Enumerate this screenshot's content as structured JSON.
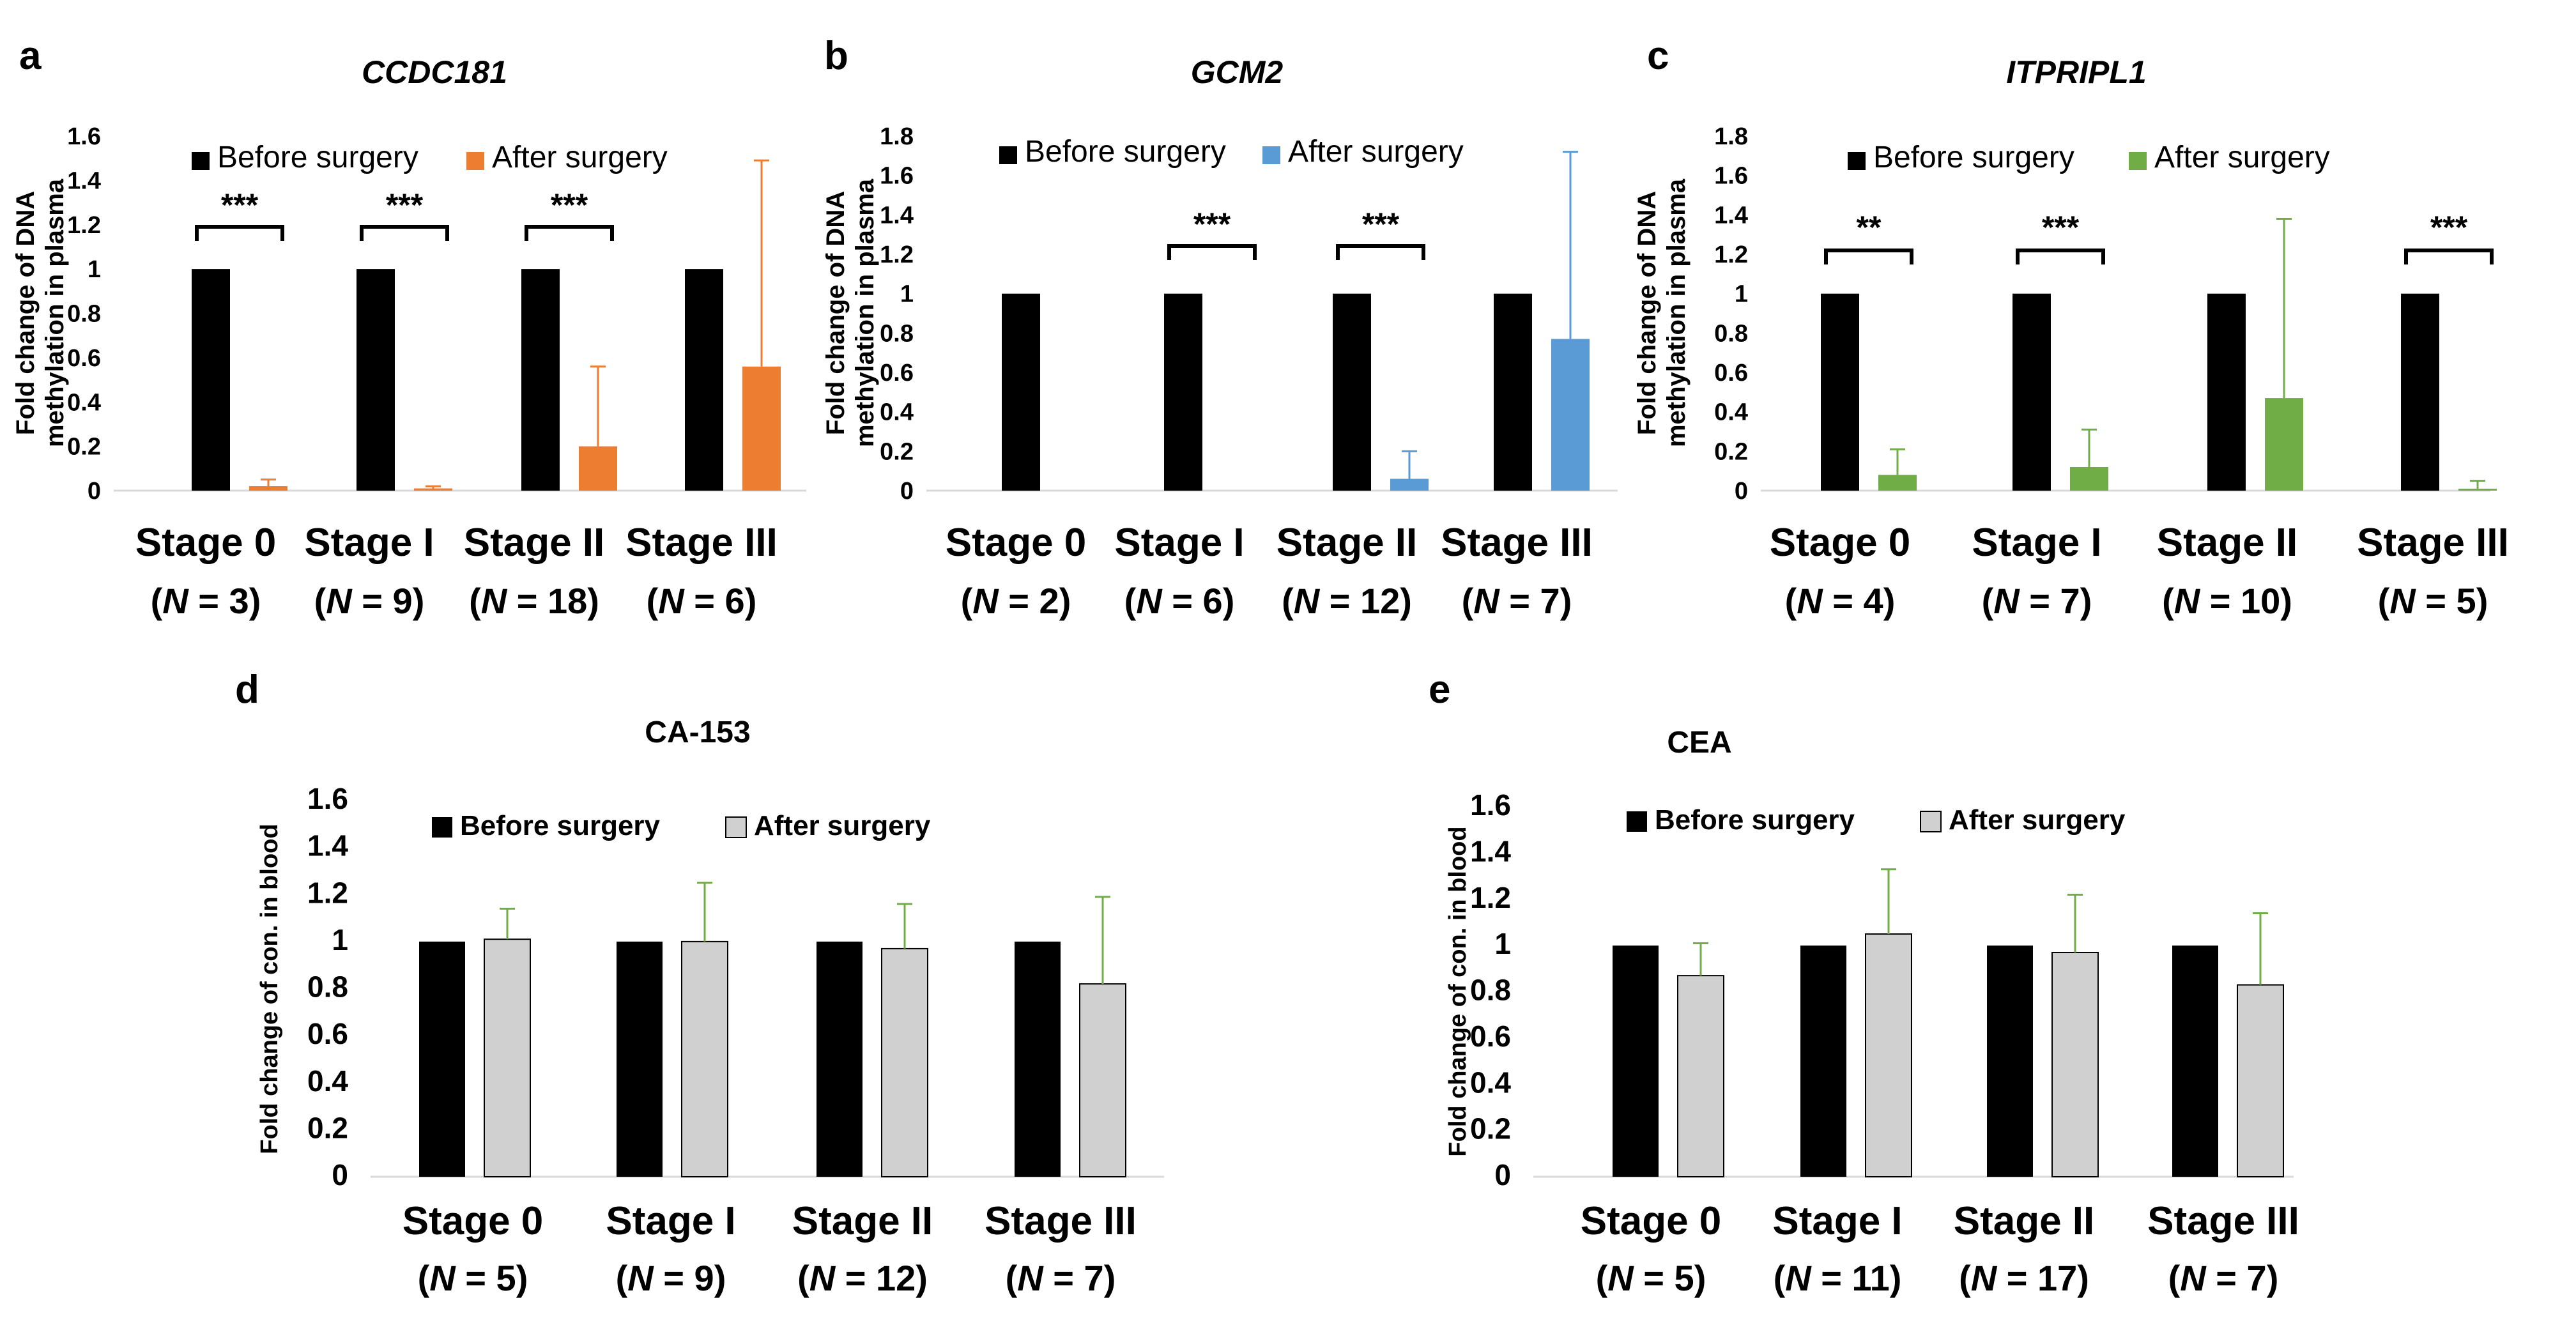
{
  "chart_data": [
    {
      "panel": "a",
      "type": "bar",
      "title": "CCDC181",
      "ylabel_lines": [
        "Fold change of DNA",
        "methylation in plasma"
      ],
      "ylim": [
        0,
        1.6
      ],
      "yticks": [
        "0",
        "0.2",
        "0.4",
        "0.6",
        "0.8",
        "1",
        "1.2",
        "1.4",
        "1.6"
      ],
      "categories": [
        "Stage 0",
        "Stage I",
        "Stage II",
        "Stage III"
      ],
      "n_values": [
        "3",
        "9",
        "18",
        "6"
      ],
      "series": [
        {
          "name": "Before surgery",
          "color": "#000000",
          "values": [
            1,
            1,
            1,
            1
          ],
          "errors": [
            0,
            0,
            0,
            0
          ]
        },
        {
          "name": "After surgery",
          "color": "#ED7D31",
          "values": [
            0.02,
            0.01,
            0.2,
            0.56
          ],
          "errors": [
            0.03,
            0.01,
            0.36,
            0.93
          ]
        }
      ],
      "significance": [
        "***",
        "***",
        "***",
        ""
      ]
    },
    {
      "panel": "b",
      "type": "bar",
      "title": "GCM2",
      "ylabel_lines": [
        "Fold change of DNA",
        "methylation in plasma"
      ],
      "ylim": [
        0,
        1.8
      ],
      "yticks": [
        "0",
        "0.2",
        "0.4",
        "0.6",
        "0.8",
        "1",
        "1.2",
        "1.4",
        "1.6",
        "1.8"
      ],
      "categories": [
        "Stage 0",
        "Stage I",
        "Stage II",
        "Stage III"
      ],
      "n_values": [
        "2",
        "6",
        "12",
        "7"
      ],
      "series": [
        {
          "name": "Before surgery",
          "color": "#000000",
          "values": [
            1,
            1,
            1,
            1
          ],
          "errors": [
            0,
            0,
            0,
            0
          ]
        },
        {
          "name": "After surgery",
          "color": "#5B9BD5",
          "values": [
            0,
            0,
            0.06,
            0.77
          ],
          "errors": [
            0,
            0,
            0.14,
            0.95
          ]
        }
      ],
      "significance": [
        "",
        "***",
        "***",
        ""
      ]
    },
    {
      "panel": "c",
      "type": "bar",
      "title": "ITPRIPL1",
      "ylabel_lines": [
        "Fold change of DNA",
        "methylation in plasma"
      ],
      "ylim": [
        0,
        1.8
      ],
      "yticks": [
        "0",
        "0.2",
        "0.4",
        "0.6",
        "0.8",
        "1",
        "1.2",
        "1.4",
        "1.6",
        "1.8"
      ],
      "categories": [
        "Stage 0",
        "Stage I",
        "Stage II",
        "Stage III"
      ],
      "n_values": [
        "4",
        "7",
        "10",
        "5"
      ],
      "series": [
        {
          "name": "Before surgery",
          "color": "#000000",
          "values": [
            1,
            1,
            1,
            1
          ],
          "errors": [
            0,
            0,
            0,
            0
          ]
        },
        {
          "name": "After surgery",
          "color": "#70AD47",
          "values": [
            0.08,
            0.12,
            0.47,
            0.01
          ],
          "errors": [
            0.13,
            0.19,
            0.91,
            0.04
          ]
        }
      ],
      "significance": [
        "**",
        "***",
        "",
        "***"
      ]
    },
    {
      "panel": "d",
      "type": "bar",
      "title": "CA-153",
      "ylabel_lines": [
        "Fold change of con. in blood"
      ],
      "ylim": [
        0,
        1.6
      ],
      "yticks": [
        "0",
        "0.2",
        "0.4",
        "0.6",
        "0.8",
        "1",
        "1.2",
        "1.4",
        "1.6"
      ],
      "categories": [
        "Stage 0",
        "Stage I",
        "Stage II",
        "Stage III"
      ],
      "n_values": [
        "5",
        "9",
        "12",
        "7"
      ],
      "series": [
        {
          "name": "Before surgery",
          "color": "#000000",
          "values": [
            1,
            1,
            1,
            1
          ],
          "errors": [
            0,
            0,
            0,
            0
          ]
        },
        {
          "name": "After surgery",
          "color": "#D0D0D0",
          "values": [
            1.01,
            1.0,
            0.97,
            0.82
          ],
          "errors": [
            0.13,
            0.25,
            0.19,
            0.37
          ]
        }
      ],
      "significance": [
        "",
        "",
        "",
        ""
      ]
    },
    {
      "panel": "e",
      "type": "bar",
      "title": "CEA",
      "ylabel_lines": [
        "Fold change of con. in blood"
      ],
      "ylim": [
        0,
        1.6
      ],
      "yticks": [
        "0",
        "0.2",
        "0.4",
        "0.6",
        "0.8",
        "1",
        "1.2",
        "1.4",
        "1.6"
      ],
      "categories": [
        "Stage 0",
        "Stage I",
        "Stage II",
        "Stage III"
      ],
      "n_values": [
        "5",
        "11",
        "17",
        "7"
      ],
      "series": [
        {
          "name": "Before surgery",
          "color": "#000000",
          "values": [
            1,
            1,
            1,
            1
          ],
          "errors": [
            0,
            0,
            0,
            0
          ]
        },
        {
          "name": "After surgery",
          "color": "#D0D0D0",
          "values": [
            0.87,
            1.05,
            0.97,
            0.83
          ],
          "errors": [
            0.14,
            0.28,
            0.25,
            0.31
          ]
        }
      ],
      "significance": [
        "",
        "",
        "",
        ""
      ]
    }
  ],
  "n_prefix": "N",
  "n_equals": " = "
}
